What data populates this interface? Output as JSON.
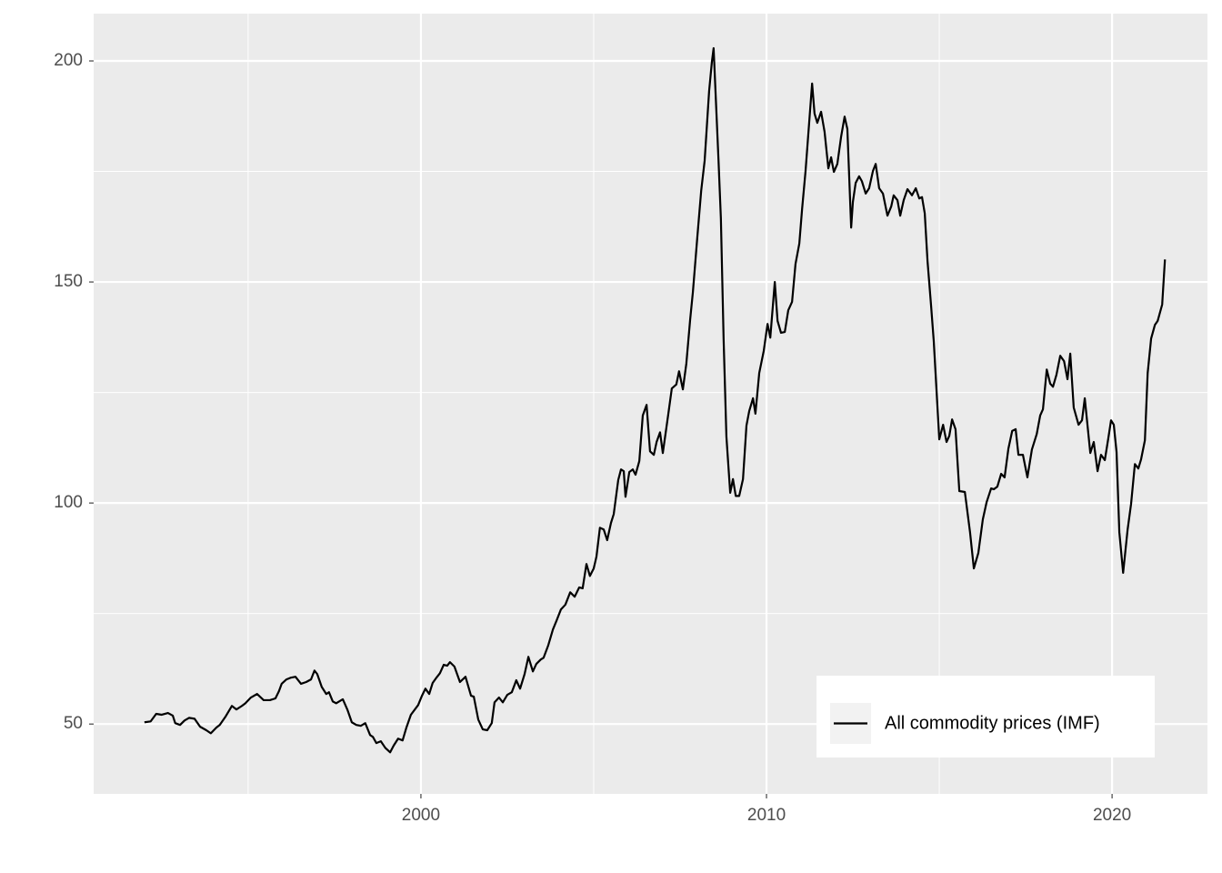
{
  "chart_data": {
    "type": "line",
    "x": [
      1992.0,
      1992.18,
      1992.34,
      1992.5,
      1992.68,
      1992.82,
      1992.89,
      1993.03,
      1993.16,
      1993.29,
      1993.45,
      1993.61,
      1993.79,
      1993.92,
      1994.08,
      1994.18,
      1994.34,
      1994.53,
      1994.66,
      1994.82,
      1994.92,
      1995.08,
      1995.26,
      1995.45,
      1995.63,
      1995.79,
      1995.89,
      1995.97,
      1996.11,
      1996.24,
      1996.37,
      1996.53,
      1996.68,
      1996.82,
      1996.92,
      1997.0,
      1997.13,
      1997.26,
      1997.34,
      1997.45,
      1997.55,
      1997.74,
      1997.87,
      1998.0,
      1998.13,
      1998.26,
      1998.39,
      1998.53,
      1998.61,
      1998.71,
      1998.84,
      1998.97,
      1999.11,
      1999.21,
      1999.34,
      1999.47,
      1999.58,
      1999.71,
      1999.92,
      2000.03,
      2000.13,
      2000.24,
      2000.34,
      2000.45,
      2000.55,
      2000.66,
      2000.76,
      2000.84,
      2000.97,
      2001.13,
      2001.29,
      2001.45,
      2001.53,
      2001.66,
      2001.79,
      2001.92,
      2002.05,
      2002.13,
      2002.26,
      2002.37,
      2002.5,
      2002.63,
      2002.76,
      2002.87,
      2003.0,
      2003.11,
      2003.24,
      2003.34,
      2003.47,
      2003.55,
      2003.68,
      2003.82,
      2003.92,
      2004.05,
      2004.18,
      2004.32,
      2004.45,
      2004.58,
      2004.68,
      2004.79,
      2004.89,
      2005.0,
      2005.08,
      2005.18,
      2005.29,
      2005.39,
      2005.5,
      2005.58,
      2005.71,
      2005.79,
      2005.87,
      2005.92,
      2006.03,
      2006.13,
      2006.21,
      2006.32,
      2006.42,
      2006.53,
      2006.63,
      2006.74,
      2006.82,
      2006.92,
      2007.0,
      2007.16,
      2007.26,
      2007.39,
      2007.47,
      2007.58,
      2007.68,
      2007.79,
      2007.87,
      2008.0,
      2008.11,
      2008.21,
      2008.34,
      2008.42,
      2008.47,
      2008.61,
      2008.68,
      2008.76,
      2008.84,
      2008.95,
      2009.03,
      2009.11,
      2009.21,
      2009.32,
      2009.42,
      2009.5,
      2009.61,
      2009.68,
      2009.79,
      2009.92,
      2010.03,
      2010.11,
      2010.24,
      2010.32,
      2010.42,
      2010.53,
      2010.63,
      2010.74,
      2010.84,
      2010.95,
      2011.03,
      2011.13,
      2011.24,
      2011.32,
      2011.39,
      2011.47,
      2011.58,
      2011.68,
      2011.79,
      2011.87,
      2011.95,
      2012.05,
      2012.16,
      2012.26,
      2012.34,
      2012.45,
      2012.5,
      2012.58,
      2012.68,
      2012.76,
      2012.87,
      2012.97,
      2013.08,
      2013.16,
      2013.26,
      2013.37,
      2013.5,
      2013.61,
      2013.68,
      2013.79,
      2013.87,
      2013.97,
      2014.08,
      2014.21,
      2014.32,
      2014.42,
      2014.5,
      2014.58,
      2014.66,
      2014.76,
      2014.84,
      2015.0,
      2015.11,
      2015.21,
      2015.29,
      2015.37,
      2015.47,
      2015.58,
      2015.74,
      2015.89,
      2016.0,
      2016.13,
      2016.26,
      2016.37,
      2016.5,
      2016.58,
      2016.68,
      2016.79,
      2016.89,
      2017.0,
      2017.11,
      2017.21,
      2017.29,
      2017.42,
      2017.55,
      2017.68,
      2017.82,
      2017.92,
      2018.0,
      2018.11,
      2018.21,
      2018.29,
      2018.39,
      2018.5,
      2018.61,
      2018.71,
      2018.79,
      2018.89,
      2019.03,
      2019.13,
      2019.21,
      2019.37,
      2019.47,
      2019.58,
      2019.68,
      2019.79,
      2019.89,
      2019.97,
      2020.05,
      2020.13,
      2020.21,
      2020.32,
      2020.45,
      2020.55,
      2020.66,
      2020.76,
      2020.84,
      2020.95,
      2021.03,
      2021.13,
      2021.24,
      2021.32,
      2021.45,
      2021.53
    ],
    "series": [
      {
        "name": "All commodity prices (IMF)",
        "color": "#000000",
        "values": [
          50.4,
          50.6,
          52.3,
          52.1,
          52.5,
          51.9,
          50.2,
          49.8,
          50.8,
          51.4,
          51.2,
          49.4,
          48.6,
          47.9,
          49.2,
          49.8,
          51.6,
          54.1,
          53.3,
          54.1,
          54.7,
          56.0,
          56.8,
          55.4,
          55.4,
          55.8,
          57.4,
          59.1,
          60.1,
          60.5,
          60.7,
          59.1,
          59.5,
          60.1,
          62.1,
          61.3,
          58.4,
          56.8,
          57.2,
          55.1,
          54.7,
          55.6,
          53.3,
          50.4,
          49.8,
          49.6,
          50.2,
          47.5,
          47.1,
          45.7,
          46.1,
          44.6,
          43.6,
          45.1,
          46.7,
          46.3,
          49.2,
          52.1,
          54.3,
          56.4,
          58.0,
          56.8,
          59.3,
          60.5,
          61.5,
          63.4,
          63.2,
          64.0,
          63.0,
          59.5,
          60.7,
          56.4,
          56.2,
          51.0,
          48.8,
          48.6,
          50.2,
          54.9,
          56.0,
          54.9,
          56.6,
          57.2,
          59.9,
          58.0,
          61.3,
          65.2,
          61.9,
          63.6,
          64.6,
          65.0,
          67.7,
          71.4,
          73.3,
          75.9,
          77.0,
          79.8,
          78.8,
          80.9,
          80.7,
          86.2,
          83.5,
          85.2,
          87.9,
          94.4,
          94.0,
          91.6,
          95.5,
          97.5,
          105.2,
          107.6,
          107.2,
          101.4,
          107.0,
          107.6,
          106.4,
          109.5,
          119.8,
          122.2,
          111.7,
          110.9,
          113.8,
          116.0,
          111.3,
          120.2,
          125.9,
          126.8,
          129.8,
          125.7,
          131.5,
          141.4,
          147.7,
          160.3,
          170.6,
          177.4,
          193.2,
          199.8,
          202.9,
          177.8,
          164.4,
          136.8,
          115.0,
          102.3,
          105.4,
          101.6,
          101.6,
          105.4,
          117.5,
          120.8,
          123.7,
          120.2,
          129.4,
          134.4,
          140.5,
          137.4,
          150.0,
          141.2,
          138.5,
          138.7,
          143.6,
          145.5,
          154.1,
          158.7,
          166.5,
          175.1,
          186.6,
          194.9,
          188.1,
          186.0,
          188.5,
          184.0,
          175.7,
          178.2,
          174.9,
          176.7,
          182.9,
          187.4,
          184.6,
          162.3,
          168.1,
          172.4,
          173.9,
          172.8,
          170.0,
          171.2,
          175.1,
          176.7,
          171.2,
          170.0,
          165.0,
          167.1,
          169.6,
          168.5,
          165.0,
          168.5,
          171.0,
          169.6,
          171.2,
          168.9,
          169.2,
          165.5,
          154.7,
          144.9,
          136.6,
          114.4,
          117.7,
          113.8,
          115.2,
          118.9,
          116.7,
          102.7,
          102.5,
          93.4,
          85.2,
          88.7,
          96.3,
          100.2,
          103.3,
          103.1,
          103.7,
          106.6,
          105.8,
          112.3,
          116.3,
          116.7,
          110.9,
          110.9,
          105.8,
          112.1,
          115.6,
          119.8,
          121.2,
          130.2,
          127.0,
          126.3,
          129.0,
          133.3,
          132.1,
          128.0,
          133.8,
          121.6,
          117.7,
          118.7,
          123.7,
          111.3,
          113.8,
          107.2,
          110.9,
          109.7,
          114.6,
          118.7,
          117.7,
          111.5,
          93.4,
          84.2,
          94.0,
          99.8,
          108.8,
          107.8,
          109.9,
          114.2,
          129.4,
          137.2,
          140.3,
          141.2,
          144.9,
          155.1
        ]
      }
    ],
    "xlim": [
      1990.53,
      2022.76
    ],
    "xticks": [
      2000,
      2010,
      2020
    ],
    "ylim": [
      34.2,
      210.7
    ],
    "yticks": [
      50,
      100,
      150,
      200
    ],
    "grid": true,
    "minor_grid": true,
    "legend_position": "bottom-right"
  }
}
